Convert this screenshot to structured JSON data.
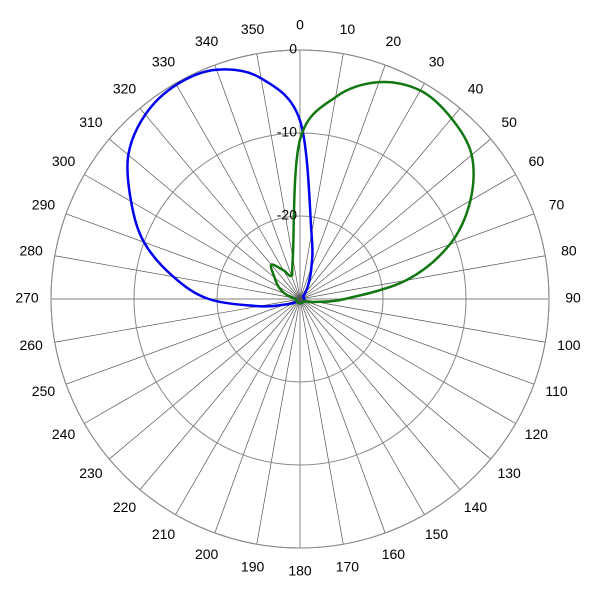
{
  "chart_data": {
    "type": "polar",
    "theta": [
      0,
      10,
      20,
      30,
      40,
      50,
      60,
      70,
      80,
      90,
      100,
      110,
      120,
      130,
      140,
      150,
      160,
      170,
      180,
      190,
      200,
      210,
      220,
      230,
      240,
      250,
      260,
      270,
      280,
      290,
      300,
      310,
      320,
      330,
      340,
      350
    ],
    "thetaticks": [
      0,
      10,
      20,
      30,
      40,
      50,
      60,
      70,
      80,
      90,
      100,
      110,
      120,
      130,
      140,
      150,
      160,
      170,
      180,
      190,
      200,
      210,
      220,
      230,
      240,
      250,
      260,
      270,
      280,
      290,
      300,
      310,
      320,
      330,
      340,
      350
    ],
    "rlim": [
      -30,
      0
    ],
    "rticks": [
      -20,
      -10,
      0
    ],
    "series": [
      {
        "color": "#0000ee",
        "values": [
          -8.5,
          -22,
          -26,
          -28,
          -29,
          -29.5,
          -29.5,
          -29.5,
          -29.5,
          -29.5,
          -29.5,
          -29.5,
          -29.5,
          -29.5,
          -29.5,
          -29.5,
          -29.5,
          -29.5,
          -29.5,
          -29.5,
          -29.5,
          -29.5,
          -29.5,
          -29.5,
          -29,
          -28,
          -25,
          -19,
          -14.5,
          -10,
          -6.5,
          -3,
          -1,
          -0.2,
          -0.6,
          -3
        ]
      },
      {
        "color": "#117711",
        "values": [
          -10.8,
          -5.3,
          -2.2,
          -1,
          -1.6,
          -3,
          -6.3,
          -10.8,
          -17,
          -24.6,
          -28,
          -29,
          -29.5,
          -29.5,
          -29.5,
          -29.5,
          -29.5,
          -29.5,
          -29.5,
          -29.5,
          -29.5,
          -29.5,
          -29.5,
          -29.5,
          -29.5,
          -29.5,
          -29.5,
          -29.5,
          -29,
          -28,
          -27,
          -26,
          -24.6,
          -26,
          -27,
          -25
        ]
      }
    ]
  }
}
